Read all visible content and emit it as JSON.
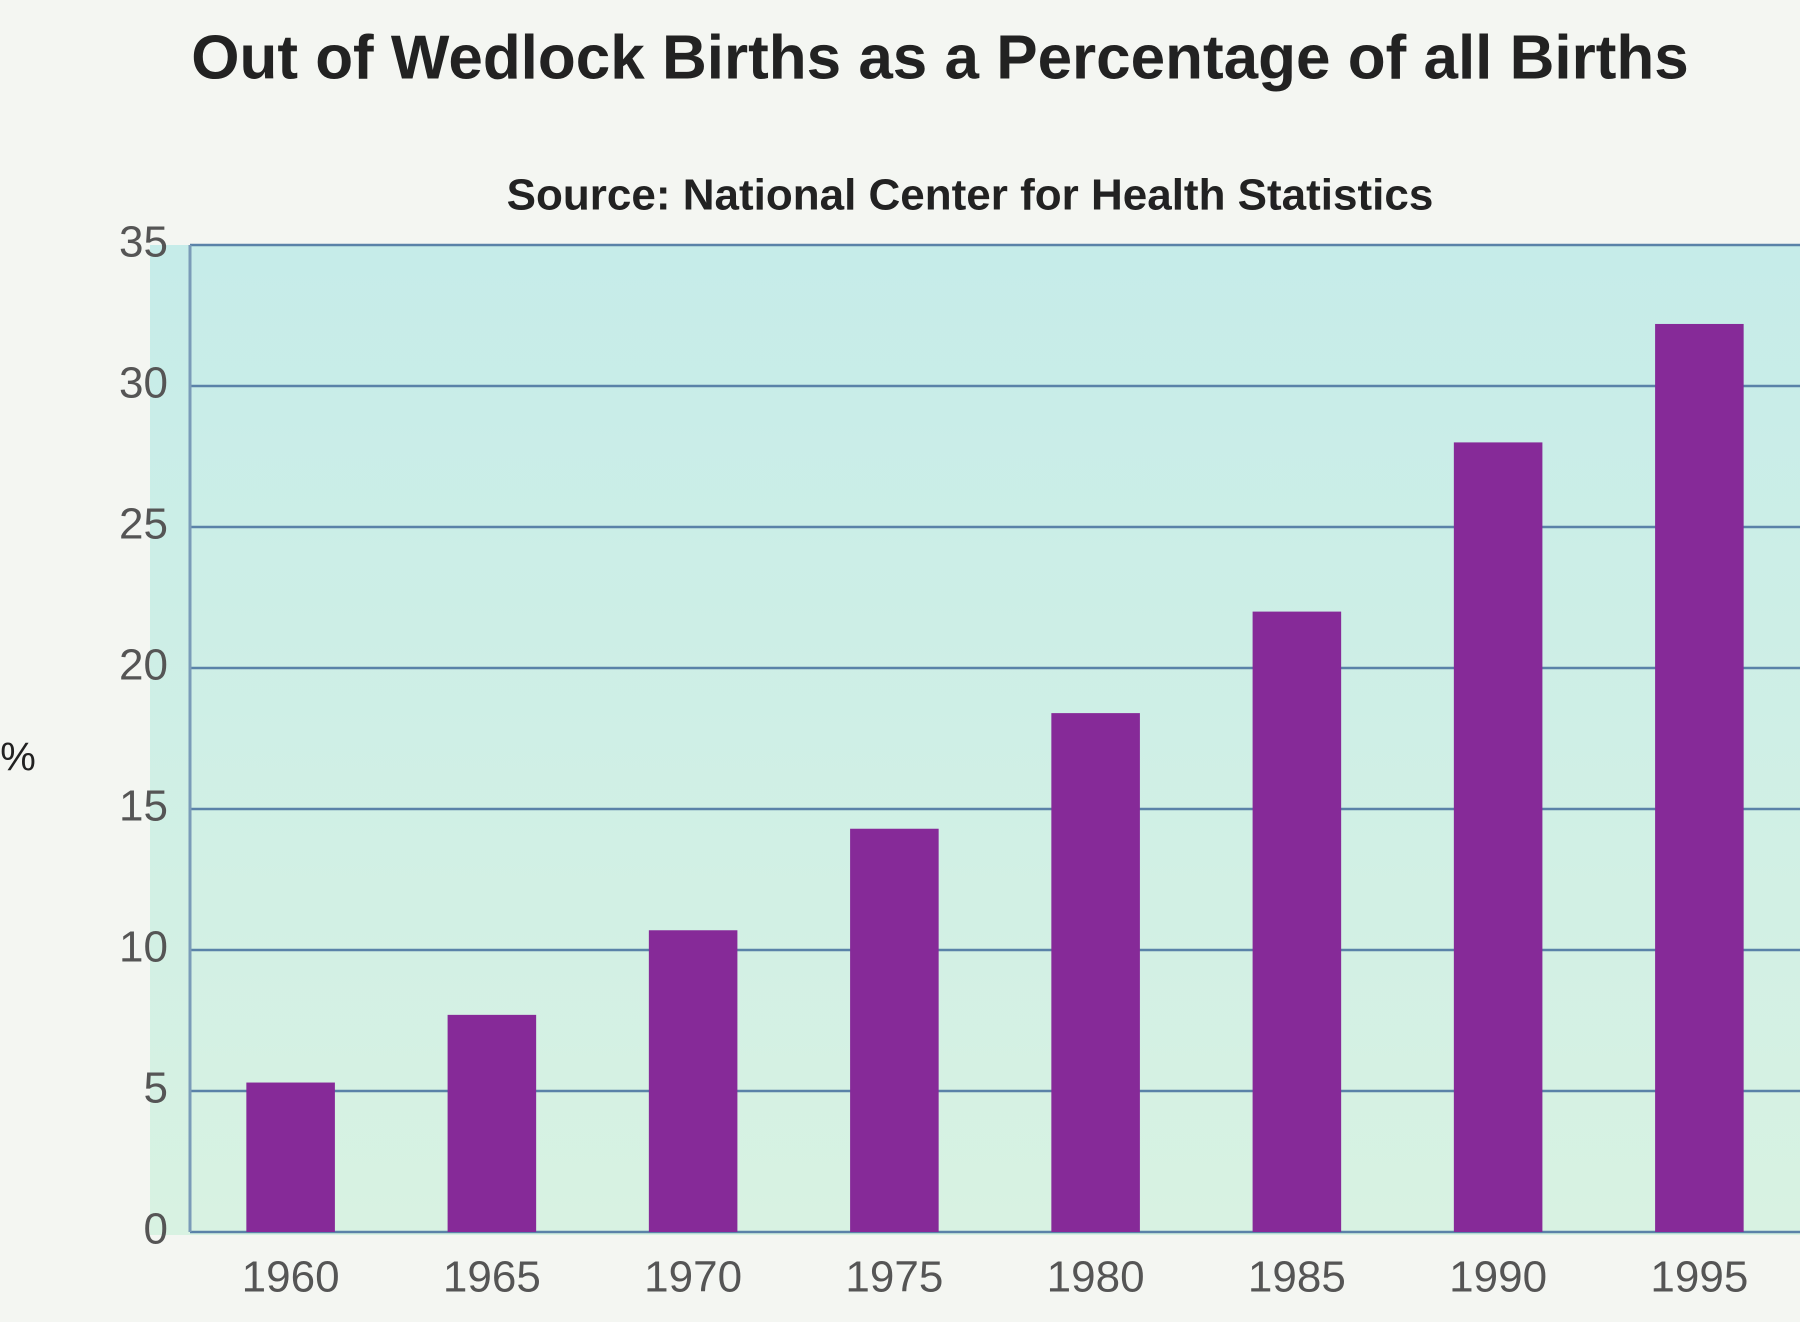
{
  "chart_data": {
    "type": "bar",
    "title": "Out of Wedlock Births as a Percentage of all Births",
    "subtitle": "Source: National Center for Health Statistics",
    "y_label": "%",
    "categories": [
      "1960",
      "1965",
      "1970",
      "1975",
      "1980",
      "1985",
      "1990",
      "1995"
    ],
    "values": [
      5.3,
      7.7,
      10.7,
      14.3,
      18.4,
      22.0,
      28.0,
      32.2
    ],
    "color": "#862a98",
    "ylim": [
      0,
      35
    ],
    "yticks": [
      0,
      5,
      10,
      15,
      20,
      25,
      30,
      35
    ],
    "grid": true
  }
}
